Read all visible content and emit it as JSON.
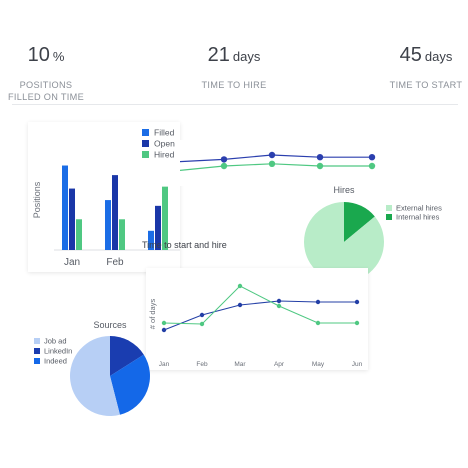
{
  "kpis": [
    {
      "value": "10",
      "unit": "%",
      "label_lines": [
        "POSITIONS",
        "FILLED ON TIME"
      ]
    },
    {
      "value": "21",
      "unit": "days",
      "label_lines": [
        "TIME TO HIRE"
      ]
    },
    {
      "value": "45",
      "unit": "days",
      "label_lines": [
        "TIME TO START"
      ]
    }
  ],
  "colors": {
    "filled": "#1b6de6",
    "open": "#1a37a8",
    "hired": "#4fc882",
    "external_hires": "#b8ecc8",
    "internal_hires": "#1aa84e",
    "job_ad": "#b7cff5",
    "linkedin": "#1a3db0",
    "indeed": "#1468e8",
    "line_dark": "#2b3fae",
    "line_green": "#4fc882",
    "small_line_dark": "#233fa6",
    "small_line_green": "#4fc882"
  },
  "chart_data": [
    {
      "id": "positions",
      "type": "bar",
      "ylabel": "Positions",
      "categories": [
        "Jan",
        "Feb",
        ""
      ],
      "series": [
        {
          "name": "Filled",
          "values": [
            88,
            52,
            20
          ]
        },
        {
          "name": "Open",
          "values": [
            64,
            78,
            46
          ]
        },
        {
          "name": "Hired",
          "values": [
            32,
            32,
            66
          ]
        }
      ],
      "ylim": [
        0,
        100
      ]
    },
    {
      "id": "time_trend_top",
      "type": "line",
      "series": [
        {
          "name": "",
          "values": [
            22,
            23,
            25,
            24,
            24
          ]
        },
        {
          "name": "",
          "values": [
            18,
            20,
            21,
            20,
            20
          ]
        }
      ],
      "ylim": [
        10,
        30
      ]
    },
    {
      "id": "hires",
      "type": "pie",
      "title": "Hires",
      "labels": [
        "External hires",
        "Internal hires"
      ],
      "values": [
        86,
        14
      ]
    },
    {
      "id": "time_to_start_and_hire",
      "type": "line",
      "title": "Time to start and hire",
      "ylabel": "# of days",
      "x": [
        "Jan",
        "Feb",
        "Mar",
        "Apr",
        "May",
        "Jun"
      ],
      "series": [
        {
          "name": "",
          "values": [
            20,
            35,
            45,
            49,
            48,
            48
          ]
        },
        {
          "name": "",
          "values": [
            27,
            26,
            64,
            44,
            27,
            27
          ]
        }
      ],
      "ylim": [
        0,
        80
      ]
    },
    {
      "id": "sources",
      "type": "pie",
      "title": "Sources",
      "labels": [
        "Job ad",
        "LinkedIn",
        "Indeed"
      ],
      "values": [
        54,
        16,
        30
      ]
    }
  ]
}
